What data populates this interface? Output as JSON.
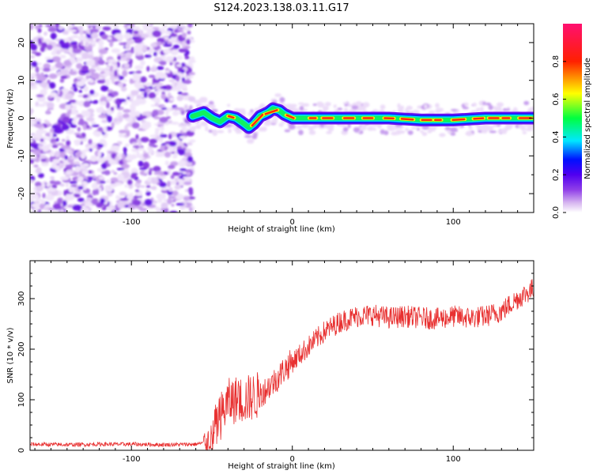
{
  "title": "S124.2023.138.03.11.G17",
  "colors": {
    "snr_line": "#e83030",
    "colormap": [
      "#ffffff",
      "#d8b8f0",
      "#9040e8",
      "#5000f0",
      "#0010ff",
      "#00e8ff",
      "#00ff40",
      "#ffff00",
      "#ff2000",
      "#ff1070"
    ]
  },
  "chart_data": [
    {
      "type": "heatmap",
      "xlabel": "Height of straight line (km)",
      "ylabel": "Frequency (Hz)",
      "xlim": [
        -163,
        150
      ],
      "ylim": [
        -25,
        25
      ],
      "xticks": [
        -100,
        0,
        100
      ],
      "yticks": [
        -20,
        -10,
        0,
        10,
        20
      ],
      "colorbar": {
        "label": "Normalized spectral amplitude",
        "range": [
          0.0,
          1.0
        ],
        "ticks": [
          0.0,
          0.2,
          0.4,
          0.6,
          0.8
        ]
      },
      "noise_region_x": [
        -163,
        -62
      ],
      "signal_trace": {
        "x": [
          -62,
          -55,
          -50,
          -45,
          -40,
          -35,
          -30,
          -27,
          -24,
          -20,
          -15,
          -12,
          -8,
          -5,
          0,
          10,
          30,
          60,
          80,
          100,
          120,
          150
        ],
        "frequency_hz": [
          0.5,
          1.5,
          0.0,
          -1.0,
          0.5,
          0.0,
          -1.5,
          -2.5,
          -1.5,
          0.5,
          1.5,
          2.5,
          2.0,
          1.0,
          0.0,
          0.0,
          0.0,
          0.0,
          -0.5,
          -0.5,
          0.0,
          0.0
        ]
      }
    },
    {
      "type": "line",
      "xlabel": "Height of straight line (km)",
      "ylabel": "SNR (10 * v/v)",
      "xlim": [
        -163,
        150
      ],
      "ylim": [
        0,
        375
      ],
      "xticks": [
        -100,
        0,
        100
      ],
      "yticks": [
        0,
        100,
        200,
        300
      ],
      "series": [
        {
          "x": [
            -163,
            -140,
            -120,
            -100,
            -80,
            -60,
            -55,
            -50,
            -45,
            -40,
            -35,
            -30,
            -25,
            -20,
            -15,
            -10,
            -5,
            0,
            5,
            10,
            15,
            20,
            25,
            30,
            40,
            50,
            60,
            70,
            80,
            90,
            100,
            110,
            120,
            130,
            140,
            150
          ],
          "values": [
            12,
            11,
            12,
            12,
            11,
            12,
            15,
            25,
            65,
            95,
            100,
            100,
            105,
            110,
            125,
            140,
            160,
            175,
            190,
            205,
            220,
            235,
            245,
            255,
            265,
            268,
            262,
            265,
            262,
            260,
            265,
            262,
            265,
            275,
            300,
            320
          ]
        }
      ]
    }
  ]
}
